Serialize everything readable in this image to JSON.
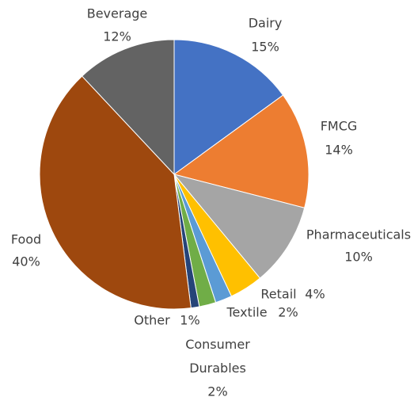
{
  "chart_data": {
    "type": "pie",
    "categories": [
      "Dairy",
      "FMCG",
      "Pharmaceuticals",
      "Retail",
      "Textile",
      "Consumer Durables",
      "Other",
      "Food",
      "Beverage"
    ],
    "values": [
      15,
      14,
      10,
      4,
      2,
      2,
      1,
      40,
      12
    ],
    "value_labels": [
      "15%",
      "14%",
      "10%",
      "4%",
      "2%",
      "2%",
      "1%",
      "40%",
      "12%"
    ],
    "colors": [
      "#4472c4",
      "#ed7d31",
      "#a5a5a5",
      "#ffc000",
      "#5b9bd5",
      "#70ad47",
      "#264478",
      "#9e480e",
      "#636363"
    ]
  }
}
